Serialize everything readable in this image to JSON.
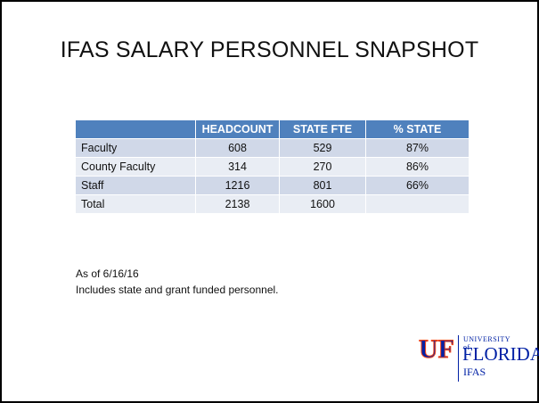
{
  "title": "IFAS SALARY PERSONNEL SNAPSHOT",
  "table": {
    "header": [
      "HEADCOUNT",
      "STATE FTE",
      "% STATE"
    ],
    "rows": [
      [
        "Faculty",
        608,
        529,
        "87%"
      ],
      [
        "County Faculty",
        314,
        270,
        "86%"
      ],
      [
        "Staff",
        1216,
        801,
        "66%"
      ],
      [
        "Total",
        2138,
        1600
      ]
    ]
  },
  "notes": [
    "As of 6/16/16",
    "Includes state and grant funded personnel."
  ],
  "logo": {
    "mark": "UF",
    "university": "UNIVERSITY of",
    "name": "FLORIDA",
    "unit": "IFAS"
  }
}
